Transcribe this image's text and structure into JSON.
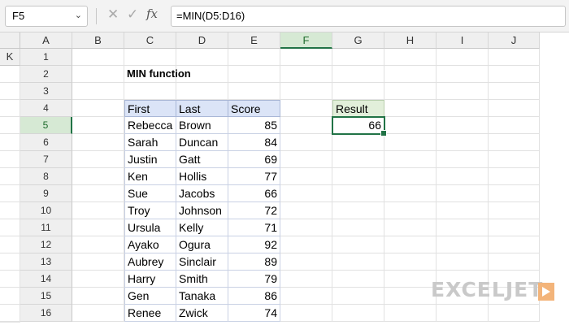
{
  "formula_bar": {
    "name_box": "F5",
    "fx": "fx",
    "formula": "=MIN(D5:D16)"
  },
  "columns": [
    "A",
    "B",
    "C",
    "D",
    "E",
    "F",
    "G",
    "H",
    "I",
    "J",
    "K"
  ],
  "rows": [
    "1",
    "2",
    "3",
    "4",
    "5",
    "6",
    "7",
    "8",
    "9",
    "10",
    "11",
    "12",
    "13",
    "14",
    "15",
    "16"
  ],
  "selected_column": "F",
  "selected_row": "5",
  "title": "MIN function",
  "table": {
    "headers": [
      "First",
      "Last",
      "Score"
    ],
    "rows": [
      [
        "Rebecca",
        "Brown",
        "85"
      ],
      [
        "Sarah",
        "Duncan",
        "84"
      ],
      [
        "Justin",
        "Gatt",
        "69"
      ],
      [
        "Ken",
        "Hollis",
        "77"
      ],
      [
        "Sue",
        "Jacobs",
        "66"
      ],
      [
        "Troy",
        "Johnson",
        "72"
      ],
      [
        "Ursula",
        "Kelly",
        "71"
      ],
      [
        "Ayako",
        "Ogura",
        "92"
      ],
      [
        "Aubrey",
        "Sinclair",
        "89"
      ],
      [
        "Harry",
        "Smith",
        "79"
      ],
      [
        "Gen",
        "Tanaka",
        "86"
      ],
      [
        "Renee",
        "Zwick",
        "74"
      ]
    ]
  },
  "result": {
    "label": "Result",
    "value": "66"
  },
  "logo": "EXCELJET",
  "colors": {
    "accent": "#217346",
    "table_header": "#dbe4f7",
    "result_header": "#e2efda"
  }
}
